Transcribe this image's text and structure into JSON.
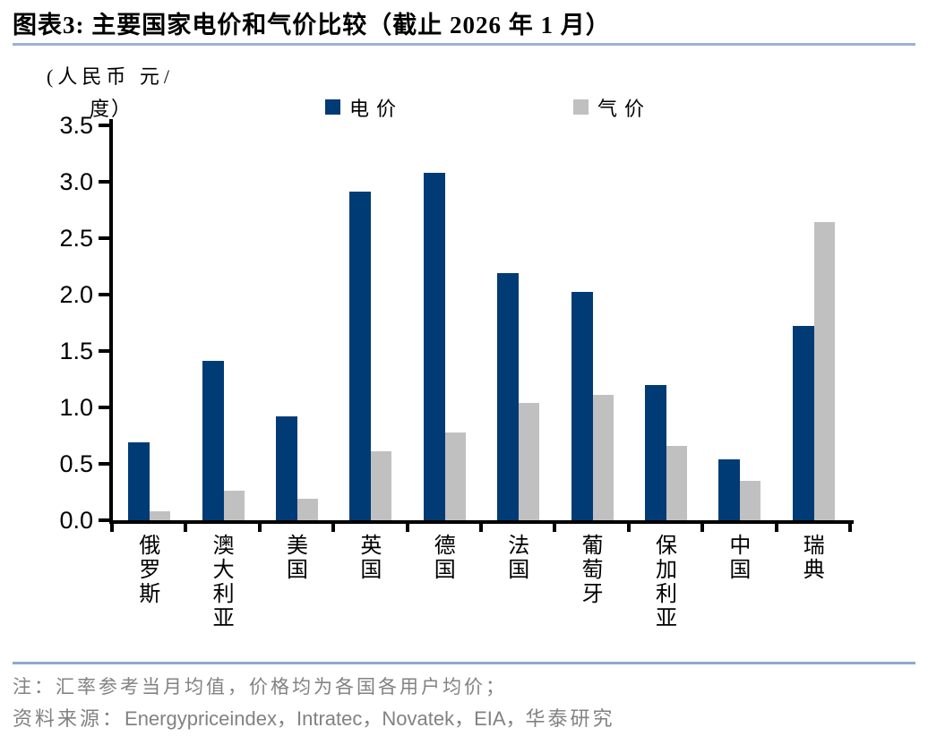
{
  "header": {
    "title": "图表3:  主要国家电价和气价比较（截止 2026 年 1 月）"
  },
  "chart_data": {
    "type": "bar",
    "title": "主要国家电价和气价比较（截止 2026 年 1 月）",
    "unit_label_line1": "(人民币 元/",
    "unit_label_line2": "度）",
    "categories": [
      "俄罗斯",
      "澳大利亚",
      "美国",
      "英国",
      "德国",
      "法国",
      "葡萄牙",
      "保加利亚",
      "中国",
      "瑞典"
    ],
    "series": [
      {
        "key": "electricity",
        "name": "电价",
        "color": "#003B76",
        "values": [
          0.69,
          1.41,
          0.92,
          2.91,
          3.08,
          2.19,
          2.02,
          1.2,
          0.54,
          1.72
        ]
      },
      {
        "key": "gas",
        "name": "气价",
        "color": "#C0C0C0",
        "values": [
          0.08,
          0.26,
          0.19,
          0.61,
          0.78,
          1.04,
          1.11,
          0.66,
          0.35,
          2.64
        ]
      }
    ],
    "ylim": [
      0,
      3.5
    ],
    "yticks": [
      "0.0",
      "0.5",
      "1.0",
      "1.5",
      "2.0",
      "2.5",
      "3.0",
      "3.5"
    ],
    "xlabel": "",
    "ylabel": "(人民币 元/度）",
    "legend_position": "top",
    "grid": false
  },
  "footer": {
    "note": "注：汇率参考当月均值，价格均为各国各用户均价；",
    "source_prefix": "资料来源：",
    "source_latin": "Energypriceindex，Intratec，Novatek，EIA，",
    "source_suffix": "华泰研究"
  },
  "colors": {
    "title_rule": "#9EB2D0",
    "footer_rule": "#8FA9C9",
    "electricity": "#003B76",
    "gas": "#C0C0C0",
    "note_text": "#828282",
    "axis": "#000000"
  }
}
